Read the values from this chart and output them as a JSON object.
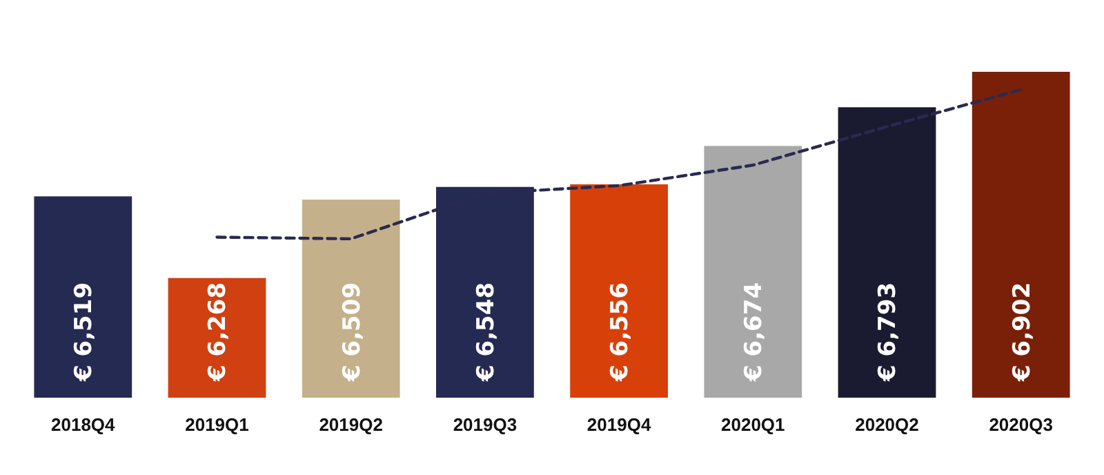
{
  "chart_data": {
    "type": "bar",
    "categories": [
      "2018Q4",
      "2019Q1",
      "2019Q2",
      "2019Q3",
      "2019Q4",
      "2020Q1",
      "2020Q2",
      "2020Q3"
    ],
    "ylim": [
      5900,
      6902
    ],
    "tick_labels": "x",
    "series": [
      {
        "values": [
          6519,
          6268,
          6509,
          6548,
          6556,
          6674,
          6793,
          6902
        ],
        "colors": [
          "#252a52",
          "#d04010",
          "#c4b08a",
          "#252a52",
          "#d8400a",
          "#a8a8a8",
          "#1a1a30",
          "#7a2008"
        ],
        "value_labels": [
          "€ 6,519",
          "€ 6,268",
          "€ 6,509",
          "€ 6,548",
          "€ 6,556",
          "€ 6,674",
          "€ 6,793",
          "€ 6,902"
        ]
      },
      {
        "type": "line",
        "color": "#2a2a50",
        "line_style": "dashed",
        "marker": "none",
        "values": [
          null,
          6393.5,
          6388.5,
          6528.5,
          6552,
          6615,
          6733.5,
          6847.5
        ]
      }
    ]
  }
}
